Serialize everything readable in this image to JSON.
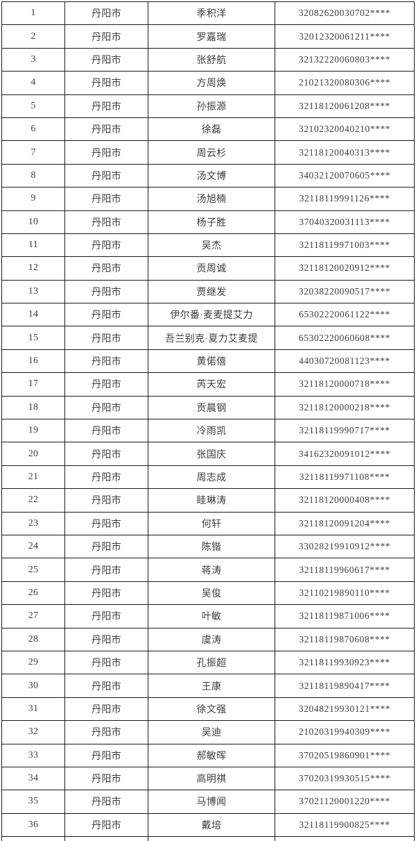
{
  "colors": {
    "border": "#1a1a1a",
    "text": "#3d3d3d",
    "background": "#ffffff"
  },
  "table": {
    "columns": [
      "seq",
      "city",
      "name",
      "id"
    ],
    "rows": [
      {
        "seq": "1",
        "city": "丹阳市",
        "name": "季积洋",
        "id": "32082620030702****"
      },
      {
        "seq": "2",
        "city": "丹阳市",
        "name": "罗嘉瑞",
        "id": "32012320061211****"
      },
      {
        "seq": "3",
        "city": "丹阳市",
        "name": "张舒航",
        "id": "32132220060803****"
      },
      {
        "seq": "4",
        "city": "丹阳市",
        "name": "方周焕",
        "id": "21021320080306****"
      },
      {
        "seq": "5",
        "city": "丹阳市",
        "name": "孙振源",
        "id": "32118120061208****"
      },
      {
        "seq": "6",
        "city": "丹阳市",
        "name": "徐磊",
        "id": "32102320040210****"
      },
      {
        "seq": "7",
        "city": "丹阳市",
        "name": "周云杉",
        "id": "32118120040313****"
      },
      {
        "seq": "8",
        "city": "丹阳市",
        "name": "汤文博",
        "id": "34032120070605****"
      },
      {
        "seq": "9",
        "city": "丹阳市",
        "name": "汤旭楠",
        "id": "32118119991126****"
      },
      {
        "seq": "10",
        "city": "丹阳市",
        "name": "杨子胜",
        "id": "37040320031113****"
      },
      {
        "seq": "11",
        "city": "丹阳市",
        "name": "吴杰",
        "id": "32118119971003****"
      },
      {
        "seq": "12",
        "city": "丹阳市",
        "name": "贡周诚",
        "id": "32118120020912****"
      },
      {
        "seq": "13",
        "city": "丹阳市",
        "name": "贾继发",
        "id": "32038220090517****"
      },
      {
        "seq": "14",
        "city": "丹阳市",
        "name": "伊尔番·麦麦提艾力",
        "id": "65302220061122****"
      },
      {
        "seq": "15",
        "city": "丹阳市",
        "name": "吾兰别克·夏力艾麦提",
        "id": "65302220060608****"
      },
      {
        "seq": "16",
        "city": "丹阳市",
        "name": "黄偌僖",
        "id": "44030720081123****"
      },
      {
        "seq": "17",
        "city": "丹阳市",
        "name": "芮天宏",
        "id": "32118120000718****"
      },
      {
        "seq": "18",
        "city": "丹阳市",
        "name": "贡晨钢",
        "id": "32118120000218****"
      },
      {
        "seq": "19",
        "city": "丹阳市",
        "name": "冷雨凯",
        "id": "32118119990717****"
      },
      {
        "seq": "20",
        "city": "丹阳市",
        "name": "张国庆",
        "id": "34162320091012****"
      },
      {
        "seq": "21",
        "city": "丹阳市",
        "name": "周志成",
        "id": "32118119971108****"
      },
      {
        "seq": "22",
        "city": "丹阳市",
        "name": "眭琳涛",
        "id": "32118120000408****"
      },
      {
        "seq": "23",
        "city": "丹阳市",
        "name": "何轩",
        "id": "32118120091204****"
      },
      {
        "seq": "24",
        "city": "丹阳市",
        "name": "陈锴",
        "id": "33028219910912****"
      },
      {
        "seq": "25",
        "city": "丹阳市",
        "name": "蒋涛",
        "id": "32118119960617****"
      },
      {
        "seq": "26",
        "city": "丹阳市",
        "name": "吴俊",
        "id": "32110219890110****"
      },
      {
        "seq": "27",
        "city": "丹阳市",
        "name": "叶敏",
        "id": "32118119871006****"
      },
      {
        "seq": "28",
        "city": "丹阳市",
        "name": "虞涛",
        "id": "32118119870608****"
      },
      {
        "seq": "29",
        "city": "丹阳市",
        "name": "孔振超",
        "id": "32118119930923****"
      },
      {
        "seq": "30",
        "city": "丹阳市",
        "name": "王康",
        "id": "32118119890417****"
      },
      {
        "seq": "31",
        "city": "丹阳市",
        "name": "徐文强",
        "id": "32048219930121****"
      },
      {
        "seq": "32",
        "city": "丹阳市",
        "name": "吴迪",
        "id": "21020319940309****"
      },
      {
        "seq": "33",
        "city": "丹阳市",
        "name": "郝敏晖",
        "id": "37020519860901****"
      },
      {
        "seq": "34",
        "city": "丹阳市",
        "name": "高明祺",
        "id": "37020319930515****"
      },
      {
        "seq": "35",
        "city": "丹阳市",
        "name": "马博闻",
        "id": "37021120001220****"
      },
      {
        "seq": "36",
        "city": "丹阳市",
        "name": "戴培",
        "id": "32118119900825****"
      }
    ],
    "partial_next_row_visible": true
  }
}
